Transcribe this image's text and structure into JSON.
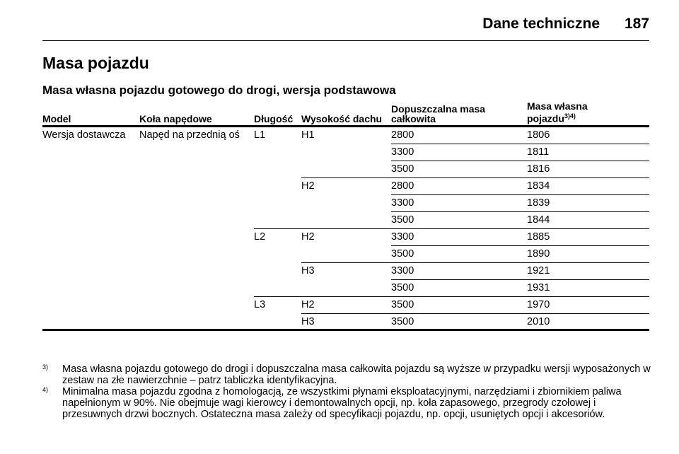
{
  "header": {
    "title": "Dane techniczne",
    "page_number": "187"
  },
  "section": {
    "title": "Masa pojazdu",
    "subtitle": "Masa własna pojazdu gotowego do drogi, wersja podstawowa"
  },
  "table": {
    "headers": {
      "model": "Model",
      "drive": "Koła napędowe",
      "length": "Długość",
      "roof": "Wysokość dachu",
      "gvw_line1": "Dopuszczalna masa",
      "gvw_line2": "całkowita",
      "mass_line1": "Masa własna",
      "mass_line2": "pojazdu",
      "mass_note": "3)4)"
    },
    "rows": [
      {
        "model": "Wersja dostawcza",
        "drive": "Napęd na przednią oś",
        "length": "L1",
        "roof": "H1",
        "gvw": "2800",
        "mass": "1806"
      },
      {
        "model": "",
        "drive": "",
        "length": "",
        "roof": "",
        "gvw": "3300",
        "mass": "1811"
      },
      {
        "model": "",
        "drive": "",
        "length": "",
        "roof": "",
        "gvw": "3500",
        "mass": "1816"
      },
      {
        "model": "",
        "drive": "",
        "length": "",
        "roof": "H2",
        "gvw": "2800",
        "mass": "1834"
      },
      {
        "model": "",
        "drive": "",
        "length": "",
        "roof": "",
        "gvw": "3300",
        "mass": "1839"
      },
      {
        "model": "",
        "drive": "",
        "length": "",
        "roof": "",
        "gvw": "3500",
        "mass": "1844"
      },
      {
        "model": "",
        "drive": "",
        "length": "L2",
        "roof": "H2",
        "gvw": "3300",
        "mass": "1885"
      },
      {
        "model": "",
        "drive": "",
        "length": "",
        "roof": "",
        "gvw": "3500",
        "mass": "1890"
      },
      {
        "model": "",
        "drive": "",
        "length": "",
        "roof": "H3",
        "gvw": "3300",
        "mass": "1921"
      },
      {
        "model": "",
        "drive": "",
        "length": "",
        "roof": "",
        "gvw": "3500",
        "mass": "1931"
      },
      {
        "model": "",
        "drive": "",
        "length": "L3",
        "roof": "H2",
        "gvw": "3500",
        "mass": "1970"
      },
      {
        "model": "",
        "drive": "",
        "length": "",
        "roof": "H3",
        "gvw": "3500",
        "mass": "2010"
      }
    ]
  },
  "footnotes": [
    {
      "mark": "3)",
      "text": "Masa własna pojazdu gotowego do drogi i dopuszczalna masa całkowita pojazdu są wyższe w przypadku wersji wyposażonych w zestaw na złe nawierzchnie – patrz tabliczka identyfikacyjna."
    },
    {
      "mark": "4)",
      "text": "Minimalna masa pojazdu zgodna z homologacją, ze wszystkimi płynami eksploatacyjnymi, narzędziami i zbiornikiem paliwa napełnionym w 90%. Nie obejmuje wagi kierowcy i demontowalnych opcji, np. koła zapasowego, przegrody czołowej i przesuwnych drzwi bocznych. Ostateczna masa zależy od specyfikacji pojazdu, np. opcji, usuniętych opcji i akcesoriów."
    }
  ]
}
